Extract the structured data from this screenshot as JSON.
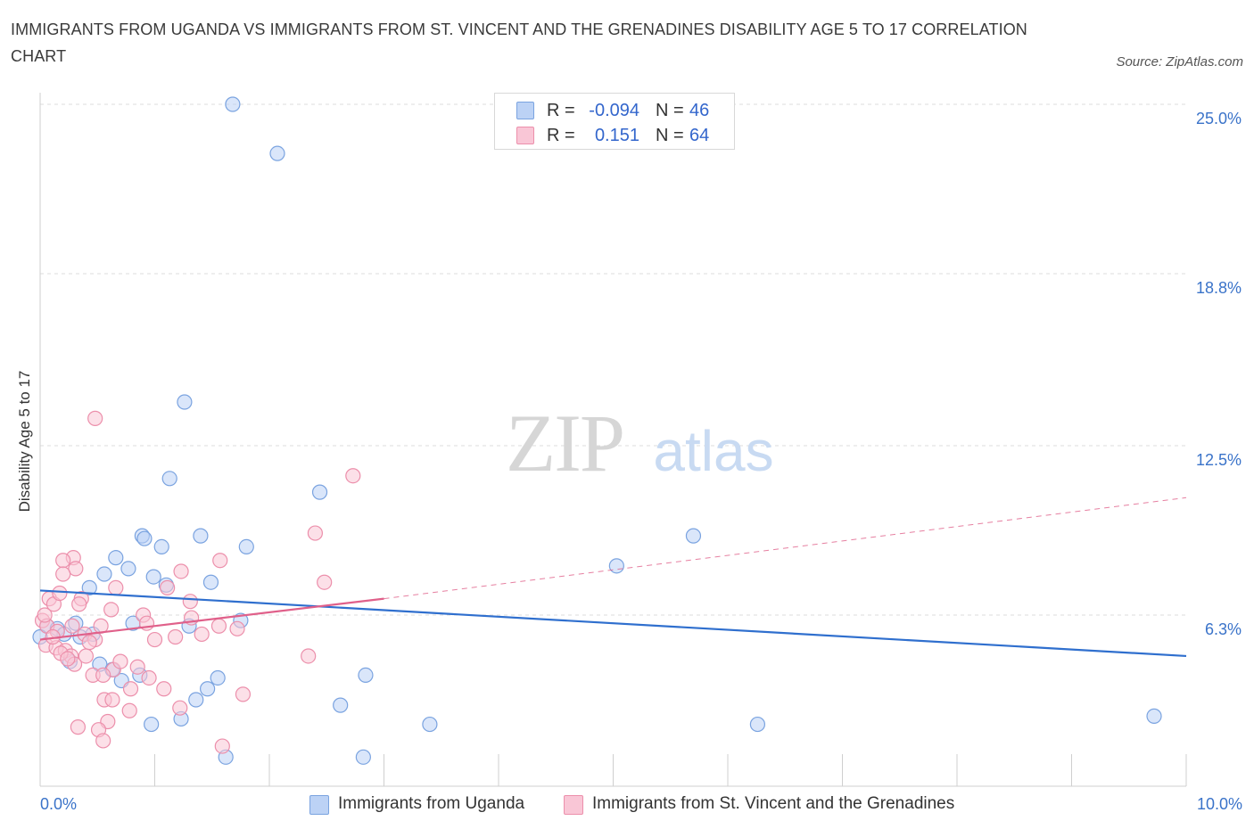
{
  "header": {
    "title": "IMMIGRANTS FROM UGANDA VS IMMIGRANTS FROM ST. VINCENT AND THE GRENADINES DISABILITY AGE 5 TO 17 CORRELATION CHART",
    "source": "Source: ZipAtlas.com"
  },
  "watermark": {
    "zip": "ZIP",
    "atlas": "atlas"
  },
  "legend": {
    "uganda": {
      "r_label": "R =",
      "r_value": "-0.094",
      "n_label": "N =",
      "n_value": "46"
    },
    "stvincent": {
      "r_label": "R =",
      "r_value": "0.151",
      "n_label": "N =",
      "n_value": "64"
    }
  },
  "bottom_legend": {
    "uganda": "Immigrants from Uganda",
    "stvincent": "Immigrants from St. Vincent and the Grenadines"
  },
  "colors": {
    "uganda_fill": "#bcd2f5",
    "uganda_stroke": "#7aa3e0",
    "uganda_line": "#2f6fce",
    "stvincent_fill": "#f9c6d6",
    "stvincent_stroke": "#ec8fab",
    "stvincent_line": "#e0608a",
    "tick_label": "#3a73c9",
    "grid": "#dddddd"
  },
  "chart_data": {
    "type": "scatter",
    "title": "IMMIGRANTS FROM UGANDA VS IMMIGRANTS FROM ST. VINCENT AND THE GRENADINES DISABILITY AGE 5 TO 17 CORRELATION CHART",
    "xlabel": "",
    "ylabel": "Disability Age 5 to 17",
    "xlim": [
      0,
      10
    ],
    "ylim": [
      0,
      25.5
    ],
    "x_tick_labels": [
      "0.0%",
      "10.0%"
    ],
    "y_ticks": [
      6.3,
      12.5,
      18.8,
      25.0
    ],
    "y_tick_labels": [
      "6.3%",
      "12.5%",
      "18.8%",
      "25.0%"
    ],
    "grid": "horizontal dashed",
    "legend_position": "top-center",
    "series": [
      {
        "name": "Immigrants from Uganda",
        "color": "#7aa3e0",
        "R": -0.094,
        "N": 46,
        "trend": {
          "x": [
            0,
            10
          ],
          "y": [
            7.2,
            4.8
          ]
        },
        "points": [
          [
            1.68,
            25.0
          ],
          [
            2.07,
            23.2
          ],
          [
            1.26,
            14.1
          ],
          [
            1.13,
            11.3
          ],
          [
            2.44,
            10.8
          ],
          [
            0.89,
            9.2
          ],
          [
            1.4,
            9.2
          ],
          [
            0.91,
            9.1
          ],
          [
            1.06,
            8.8
          ],
          [
            1.8,
            8.8
          ],
          [
            0.66,
            8.4
          ],
          [
            0.77,
            8.0
          ],
          [
            0.56,
            7.8
          ],
          [
            0.99,
            7.7
          ],
          [
            1.49,
            7.5
          ],
          [
            0.43,
            7.3
          ],
          [
            1.1,
            7.4
          ],
          [
            0.31,
            6.0
          ],
          [
            0.81,
            6.0
          ],
          [
            1.3,
            5.9
          ],
          [
            1.75,
            6.1
          ],
          [
            0.06,
            5.9
          ],
          [
            0.15,
            5.8
          ],
          [
            0.21,
            5.6
          ],
          [
            0.35,
            5.5
          ],
          [
            0.46,
            5.6
          ],
          [
            0.0,
            5.5
          ],
          [
            0.26,
            4.6
          ],
          [
            0.52,
            4.5
          ],
          [
            0.63,
            4.3
          ],
          [
            0.87,
            4.1
          ],
          [
            0.71,
            3.9
          ],
          [
            1.55,
            4.0
          ],
          [
            1.46,
            3.6
          ],
          [
            1.36,
            3.2
          ],
          [
            2.62,
            3.0
          ],
          [
            1.23,
            2.5
          ],
          [
            0.97,
            2.3
          ],
          [
            2.84,
            4.1
          ],
          [
            3.4,
            2.3
          ],
          [
            5.7,
            9.2
          ],
          [
            5.03,
            8.1
          ],
          [
            6.26,
            2.3
          ],
          [
            9.72,
            2.6
          ],
          [
            1.62,
            1.1
          ],
          [
            2.82,
            1.1
          ]
        ]
      },
      {
        "name": "Immigrants from St. Vincent and the Grenadines",
        "color": "#ec8fab",
        "R": 0.151,
        "N": 64,
        "trend": {
          "x": [
            0,
            3.0
          ],
          "y": [
            5.4,
            6.9
          ],
          "dashed_x": [
            3.0,
            10
          ],
          "dashed_y": [
            6.9,
            10.6
          ]
        },
        "points": [
          [
            0.48,
            13.5
          ],
          [
            2.73,
            11.4
          ],
          [
            2.4,
            9.3
          ],
          [
            0.29,
            8.4
          ],
          [
            0.2,
            8.3
          ],
          [
            0.31,
            8.0
          ],
          [
            1.57,
            8.3
          ],
          [
            0.2,
            7.8
          ],
          [
            1.23,
            7.9
          ],
          [
            2.48,
            7.5
          ],
          [
            0.66,
            7.3
          ],
          [
            1.11,
            7.3
          ],
          [
            0.08,
            6.9
          ],
          [
            0.36,
            6.9
          ],
          [
            0.12,
            6.7
          ],
          [
            0.34,
            6.7
          ],
          [
            1.31,
            6.8
          ],
          [
            0.62,
            6.5
          ],
          [
            0.9,
            6.3
          ],
          [
            1.32,
            6.2
          ],
          [
            0.02,
            6.1
          ],
          [
            0.06,
            5.9
          ],
          [
            0.15,
            5.7
          ],
          [
            0.28,
            5.9
          ],
          [
            0.39,
            5.6
          ],
          [
            0.48,
            5.4
          ],
          [
            0.05,
            5.2
          ],
          [
            0.14,
            5.1
          ],
          [
            0.22,
            5.0
          ],
          [
            0.27,
            4.8
          ],
          [
            1.0,
            5.4
          ],
          [
            1.56,
            5.9
          ],
          [
            1.72,
            5.8
          ],
          [
            0.3,
            4.5
          ],
          [
            0.64,
            4.3
          ],
          [
            0.46,
            4.1
          ],
          [
            0.55,
            4.1
          ],
          [
            0.95,
            4.0
          ],
          [
            0.79,
            3.6
          ],
          [
            1.08,
            3.6
          ],
          [
            0.56,
            3.2
          ],
          [
            0.63,
            3.2
          ],
          [
            0.78,
            2.8
          ],
          [
            1.22,
            2.9
          ],
          [
            1.77,
            3.4
          ],
          [
            0.59,
            2.4
          ],
          [
            0.33,
            2.2
          ],
          [
            0.51,
            2.1
          ],
          [
            0.55,
            1.7
          ],
          [
            1.59,
            1.5
          ],
          [
            0.18,
            4.9
          ],
          [
            0.24,
            4.7
          ],
          [
            0.4,
            4.8
          ],
          [
            0.11,
            5.5
          ],
          [
            0.43,
            5.3
          ],
          [
            0.7,
            4.6
          ],
          [
            0.93,
            6.0
          ],
          [
            0.04,
            6.3
          ],
          [
            0.17,
            7.1
          ],
          [
            0.53,
            5.9
          ],
          [
            1.18,
            5.5
          ],
          [
            1.41,
            5.6
          ],
          [
            2.34,
            4.8
          ],
          [
            0.85,
            4.4
          ]
        ]
      }
    ]
  }
}
